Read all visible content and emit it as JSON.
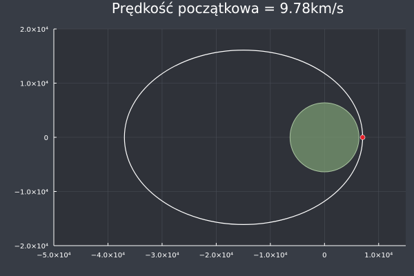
{
  "chart_data": {
    "type": "scatter",
    "title": "Prędkość początkowa = 9.78km/s",
    "xlabel": "",
    "ylabel": "",
    "xlim": [
      -50000,
      15000
    ],
    "ylim": [
      -20000,
      20000
    ],
    "grid": true,
    "x_ticks": [
      {
        "value": -50000,
        "label": "−5.0×10⁴"
      },
      {
        "value": -40000,
        "label": "−4.0×10⁴"
      },
      {
        "value": -30000,
        "label": "−3.0×10⁴"
      },
      {
        "value": -20000,
        "label": "−2.0×10⁴"
      },
      {
        "value": -10000,
        "label": "−1.0×10⁴"
      },
      {
        "value": 0,
        "label": "0"
      },
      {
        "value": 10000,
        "label": "1.0×10⁴"
      }
    ],
    "y_ticks": [
      {
        "value": 20000,
        "label": "2.0×10⁴"
      },
      {
        "value": 10000,
        "label": "1.0×10⁴"
      },
      {
        "value": 0,
        "label": "0"
      },
      {
        "value": -10000,
        "label": "−1.0×10⁴"
      },
      {
        "value": -20000,
        "label": "−2.0×10⁴"
      }
    ],
    "planet": {
      "cx": 0,
      "cy": 0,
      "r": 6371,
      "color": "#7a9a72"
    },
    "orbit": {
      "center_x": -14960,
      "center_y": 0,
      "semi_major": 22000,
      "semi_minor": 16100,
      "color": "#ffffff"
    },
    "start_point": {
      "x": 7040,
      "y": 0,
      "color": "#e8202a"
    }
  }
}
